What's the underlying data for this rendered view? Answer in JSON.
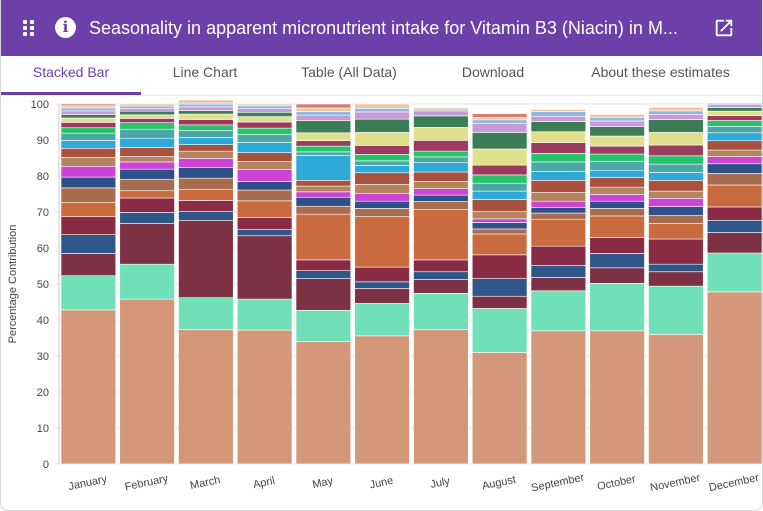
{
  "header": {
    "title": "Seasonality in apparent micronutrient intake for Vitamin B3 (Niacin) in M...",
    "menu_icon": "grid-icon",
    "info_icon": "info-icon",
    "info_glyph": "i",
    "open_icon": "open-external-icon"
  },
  "tabs": [
    {
      "label": "Stacked Bar",
      "active": true
    },
    {
      "label": "Line Chart",
      "active": false
    },
    {
      "label": "Table (All Data)",
      "active": false
    },
    {
      "label": "Download",
      "active": false
    },
    {
      "label": "About these estimates",
      "active": false
    }
  ],
  "chart_data": {
    "type": "bar",
    "stacked": true,
    "title": "",
    "xlabel": "",
    "ylabel": "Percentage Contribution",
    "ylim": [
      0,
      100
    ],
    "yticks": [
      0,
      10,
      20,
      30,
      40,
      50,
      60,
      70,
      80,
      90,
      100
    ],
    "grid": true,
    "legend": "none",
    "categories": [
      "January",
      "February",
      "March",
      "April",
      "May",
      "June",
      "July",
      "August",
      "September",
      "October",
      "November",
      "December"
    ],
    "segment_colors": [
      "#d4977a",
      "#6fe0b8",
      "#7d3144",
      "#2f5688",
      "#8a2b46",
      "#c96a3f",
      "#a86d4e",
      "#2e4f87",
      "#cc44d6",
      "#b5845c",
      "#a8513e",
      "#2fa9d8",
      "#4aa8a6",
      "#25c46b",
      "#9d3b5f",
      "#e0e08c",
      "#3c7d55",
      "#c99bd6",
      "#8fb7e0",
      "#f0c6a0",
      "#d97a70",
      "#7cb3e0",
      "#9a5ab8",
      "#e8d5c0",
      "#6a8ab8",
      "#b8d87a",
      "#cfa0d8",
      "#7a9a7a",
      "#e6c06a",
      "#8aa0c8"
    ],
    "series_values": [
      [
        42.8,
        9.5,
        6.2,
        5.2,
        5.0,
        4.0,
        4.0,
        3.0,
        3.0,
        2.5,
        2.5,
        2.2,
        2.0,
        1.5,
        1.5,
        1.2,
        1.0,
        1.0,
        0.8,
        0.6,
        0.5
      ],
      [
        45.8,
        9.7,
        11.3,
        3.1,
        4.0,
        2.0,
        3.2,
        2.8,
        2.0,
        1.5,
        2.5,
        2.6,
        2.5,
        1.8,
        1.2,
        1.0,
        1.0,
        0.8,
        0.6,
        0.6
      ],
      [
        37.4,
        8.8,
        21.5,
        2.5,
        3.0,
        3.0,
        3.2,
        3.0,
        2.5,
        2.0,
        1.8,
        2.0,
        2.0,
        1.5,
        1.5,
        1.5,
        1.0,
        1.0,
        0.8,
        0.6,
        0.4
      ],
      [
        37.2,
        8.6,
        17.6,
        1.8,
        3.3,
        4.6,
        3.0,
        2.4,
        3.3,
        2.2,
        2.5,
        2.8,
        2.2,
        1.8,
        1.7,
        1.5,
        1.2,
        1.0,
        0.8,
        0.5
      ],
      [
        34.0,
        8.7,
        8.8,
        2.2,
        3.0,
        12.7,
        2.2,
        2.5,
        1.5,
        1.6,
        1.6,
        6.9,
        1.0,
        1.6,
        1.5,
        2.2,
        3.4,
        1.5,
        1.0,
        1.0,
        1.1
      ],
      [
        35.6,
        9.0,
        4.2,
        1.8,
        4.1,
        14.0,
        2.3,
        2.0,
        2.2,
        2.5,
        3.2,
        2.0,
        1.3,
        1.8,
        2.5,
        3.6,
        3.7,
        2.0,
        1.0,
        1.2
      ],
      [
        37.4,
        10.0,
        3.9,
        2.1,
        3.3,
        14.0,
        2.2,
        1.8,
        1.8,
        2.0,
        2.6,
        2.6,
        1.6,
        1.6,
        3.0,
        3.6,
        3.2,
        1.4,
        0.5,
        0.4
      ],
      [
        31.0,
        12.2,
        3.4,
        4.9,
        6.6,
        5.8,
        1.4,
        1.8,
        1.0,
        2.0,
        3.4,
        2.3,
        2.2,
        2.3,
        2.7,
        4.5,
        4.6,
        2.5,
        1.0,
        0.7,
        1.0
      ],
      [
        37.0,
        11.1,
        3.7,
        3.4,
        5.3,
        7.5,
        1.7,
        1.5,
        1.8,
        2.4,
        3.4,
        2.5,
        2.6,
        2.4,
        3.0,
        3.0,
        2.8,
        1.5,
        1.3,
        0.6
      ],
      [
        37.0,
        13.2,
        4.3,
        4.0,
        4.4,
        6.0,
        2.1,
        2.0,
        1.9,
        2.0,
        2.7,
        2.0,
        2.5,
        2.0,
        2.2,
        2.8,
        2.6,
        1.6,
        1.0,
        0.8
      ],
      [
        36.0,
        13.4,
        4.0,
        2.1,
        7.0,
        4.3,
        2.2,
        2.5,
        2.3,
        2.0,
        3.0,
        2.2,
        2.3,
        2.3,
        3.0,
        3.5,
        3.6,
        1.4,
        1.0,
        1.0
      ],
      [
        47.8,
        10.8,
        5.7,
        3.4,
        3.7,
        6.1,
        3.2,
        2.7,
        2.0,
        1.8,
        2.6,
        2.2,
        1.8,
        1.6,
        1.4,
        1.2,
        1.0,
        0.8,
        0.4
      ]
    ]
  }
}
